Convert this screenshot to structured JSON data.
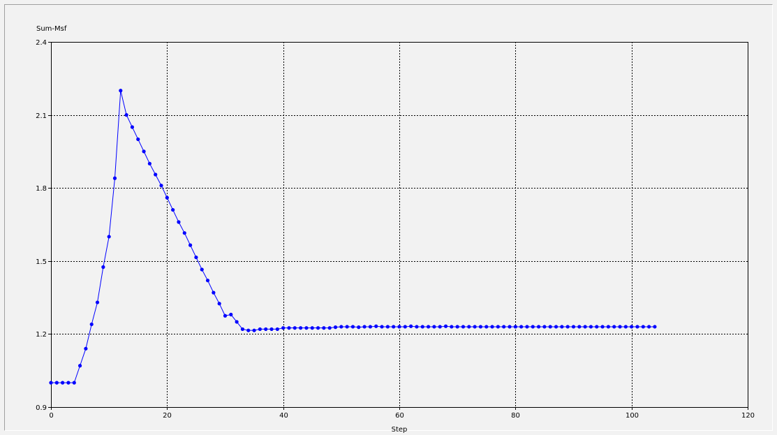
{
  "chart_data": {
    "type": "line",
    "title": "",
    "xlabel": "Step",
    "ylabel": "Sum-Msf",
    "xlim": [
      0,
      120
    ],
    "ylim": [
      0.9,
      2.4
    ],
    "x_ticks": [
      0,
      20,
      40,
      60,
      80,
      100,
      120
    ],
    "y_ticks": [
      0.9,
      1.2,
      1.5,
      1.8,
      2.1,
      2.4
    ],
    "x_tick_labels": [
      "0",
      "20",
      "40",
      "60",
      "80",
      "100",
      "120"
    ],
    "y_tick_labels": [
      "0.9",
      "1.2",
      "1.5",
      "1.8",
      "2.1",
      "2.4"
    ],
    "grid": true,
    "color": "#0000ff",
    "series": [
      {
        "x": [
          0,
          1,
          2,
          3,
          4,
          5,
          6,
          7,
          8,
          9,
          10,
          11,
          12,
          13,
          14,
          15,
          16,
          17,
          18,
          19,
          20,
          21,
          22,
          23,
          24,
          25,
          26,
          27,
          28,
          29,
          30,
          31,
          32,
          33,
          34,
          35,
          36,
          37,
          38,
          39,
          40,
          41,
          42,
          43,
          44,
          45,
          46,
          47,
          48,
          49,
          50,
          51,
          52,
          53,
          54,
          55,
          56,
          57,
          58,
          59,
          60,
          61,
          62,
          63,
          64,
          65,
          66,
          67,
          68,
          69,
          70,
          71,
          72,
          73,
          74,
          75,
          76,
          77,
          78,
          79,
          80,
          81,
          82,
          83,
          84,
          85,
          86,
          87,
          88,
          89,
          90,
          91,
          92,
          93,
          94,
          95,
          96,
          97,
          98,
          99,
          100,
          101,
          102,
          103,
          104
        ],
        "values": [
          1.0,
          1.0,
          1.0,
          1.0,
          1.0,
          1.07,
          1.14,
          1.24,
          1.33,
          1.475,
          1.6,
          1.84,
          2.2,
          2.1,
          2.05,
          2.0,
          1.95,
          1.9,
          1.855,
          1.81,
          1.76,
          1.71,
          1.66,
          1.615,
          1.565,
          1.515,
          1.465,
          1.42,
          1.37,
          1.325,
          1.275,
          1.28,
          1.25,
          1.22,
          1.215,
          1.215,
          1.22,
          1.22,
          1.22,
          1.22,
          1.225,
          1.225,
          1.225,
          1.225,
          1.225,
          1.225,
          1.225,
          1.225,
          1.225,
          1.228,
          1.23,
          1.23,
          1.23,
          1.228,
          1.23,
          1.23,
          1.232,
          1.23,
          1.23,
          1.23,
          1.23,
          1.23,
          1.232,
          1.23,
          1.23,
          1.23,
          1.23,
          1.23,
          1.232,
          1.23,
          1.23,
          1.23,
          1.23,
          1.23,
          1.23,
          1.23,
          1.23,
          1.23,
          1.23,
          1.23,
          1.23,
          1.23,
          1.23,
          1.23,
          1.23,
          1.23,
          1.23,
          1.23,
          1.23,
          1.23,
          1.23,
          1.23,
          1.23,
          1.23,
          1.23,
          1.23,
          1.23,
          1.23,
          1.23,
          1.23,
          1.23,
          1.23,
          1.23,
          1.23,
          1.23
        ]
      }
    ]
  }
}
